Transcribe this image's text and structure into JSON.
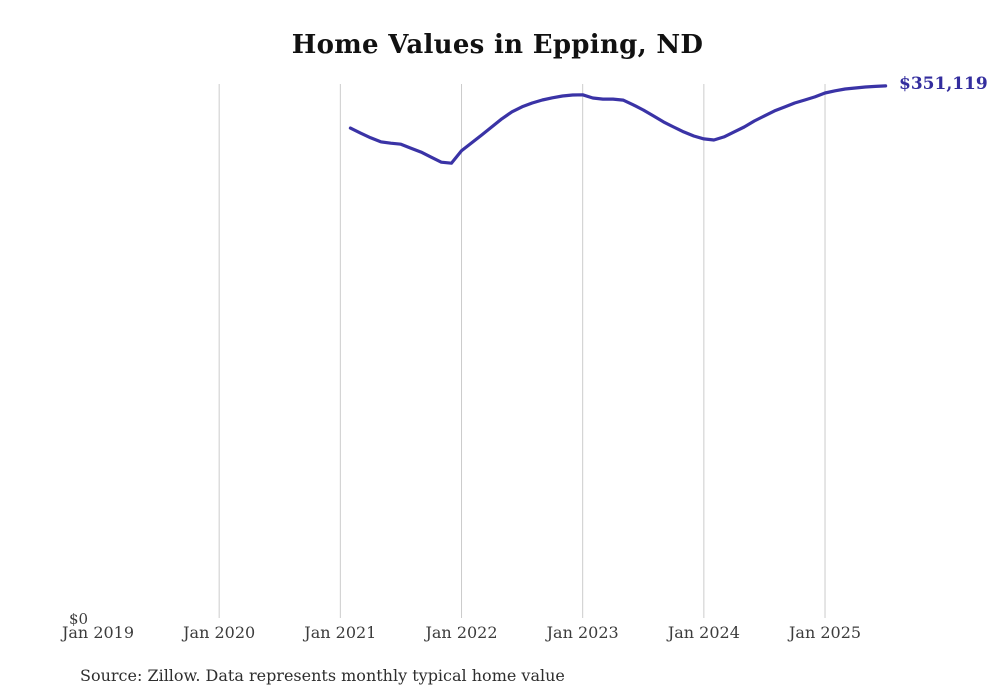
{
  "page": {
    "title": "Home Values in Epping, ND",
    "source_note": "Source: Zillow. Data represents monthly typical home value"
  },
  "colors": {
    "line": "#3a33a6",
    "end_label_text": "#332d9e",
    "gridline": "#cccccc",
    "axis_text": "#3c3c3c",
    "title_text": "#111111",
    "source_text": "#2e2e2e",
    "background": "#ffffff"
  },
  "chart_data": {
    "type": "line",
    "title": "Home Values in Epping, ND",
    "series_name": "Monthly typical home value",
    "unit": "USD",
    "end_label": "$351,119",
    "last_value": 351119,
    "y_axis": {
      "min": 0,
      "min_label": "$0",
      "max_visible": 352400,
      "horizontal_gridlines": false
    },
    "x_axis": {
      "tick_labels": [
        "Jan 2019",
        "Jan 2020",
        "Jan 2021",
        "Jan 2022",
        "Jan 2023",
        "Jan 2024",
        "Jan 2025"
      ],
      "gridline_years": [
        "Jan 2020",
        "Jan 2021",
        "Jan 2022",
        "Jan 2023",
        "Jan 2024",
        "Jan 2025"
      ]
    },
    "legend": "none",
    "x": [
      "2021-02",
      "2021-03",
      "2021-04",
      "2021-05",
      "2021-06",
      "2021-07",
      "2021-08",
      "2021-09",
      "2021-10",
      "2021-11",
      "2021-12",
      "2022-01",
      "2022-02",
      "2022-03",
      "2022-04",
      "2022-05",
      "2022-06",
      "2022-07",
      "2022-08",
      "2022-09",
      "2022-10",
      "2022-11",
      "2022-12",
      "2023-01",
      "2023-02",
      "2023-03",
      "2023-04",
      "2023-05",
      "2023-06",
      "2023-07",
      "2023-08",
      "2023-09",
      "2023-10",
      "2023-11",
      "2023-12",
      "2024-01",
      "2024-02",
      "2024-03",
      "2024-04",
      "2024-05",
      "2024-06",
      "2024-07",
      "2024-08",
      "2024-09",
      "2024-10",
      "2024-11",
      "2024-12",
      "2025-01",
      "2025-02",
      "2025-03",
      "2025-04",
      "2025-05",
      "2025-06",
      "2025-07"
    ],
    "values": [
      323400,
      320100,
      317000,
      314400,
      313500,
      312800,
      310200,
      307600,
      304300,
      301000,
      300300,
      308500,
      313700,
      318900,
      324200,
      329500,
      334100,
      337400,
      339900,
      341900,
      343300,
      344500,
      345200,
      345300,
      343200,
      342500,
      342500,
      341800,
      338700,
      335300,
      331400,
      327500,
      324100,
      320900,
      318200,
      316300,
      315600,
      317600,
      320900,
      324100,
      328100,
      331400,
      334700,
      337300,
      339900,
      341900,
      343900,
      346500,
      347900,
      349100,
      349800,
      350400,
      350800,
      351119
    ]
  }
}
